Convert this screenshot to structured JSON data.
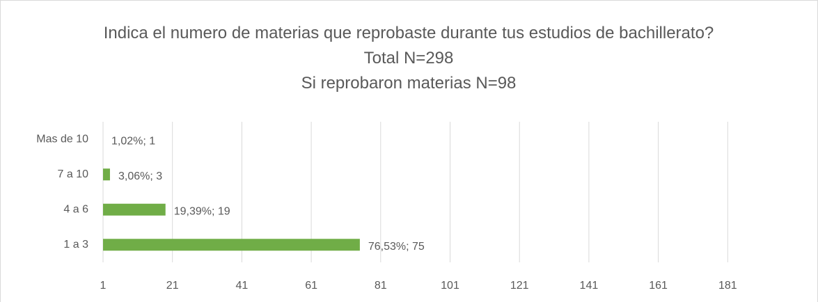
{
  "chart_data": {
    "type": "bar",
    "orientation": "horizontal",
    "title": "Indica el numero de materias que reprobaste durante tus estudios de bachillerato?  Total N=298",
    "subtitle": "Si reprobaron materias N=98",
    "categories": [
      "1 a 3",
      "4 a 6",
      "7 a 10",
      "Mas de 10"
    ],
    "values": [
      75,
      19,
      3,
      1
    ],
    "value_labels": [
      "76,53%; 75",
      "19,39%; 19",
      "3,06%; 3",
      "1,02%; 1"
    ],
    "color": "#70ad47",
    "xlim": [
      1,
      201
    ],
    "xticks": [
      1,
      21,
      41,
      61,
      81,
      101,
      121,
      141,
      161,
      181
    ],
    "grid": true
  }
}
